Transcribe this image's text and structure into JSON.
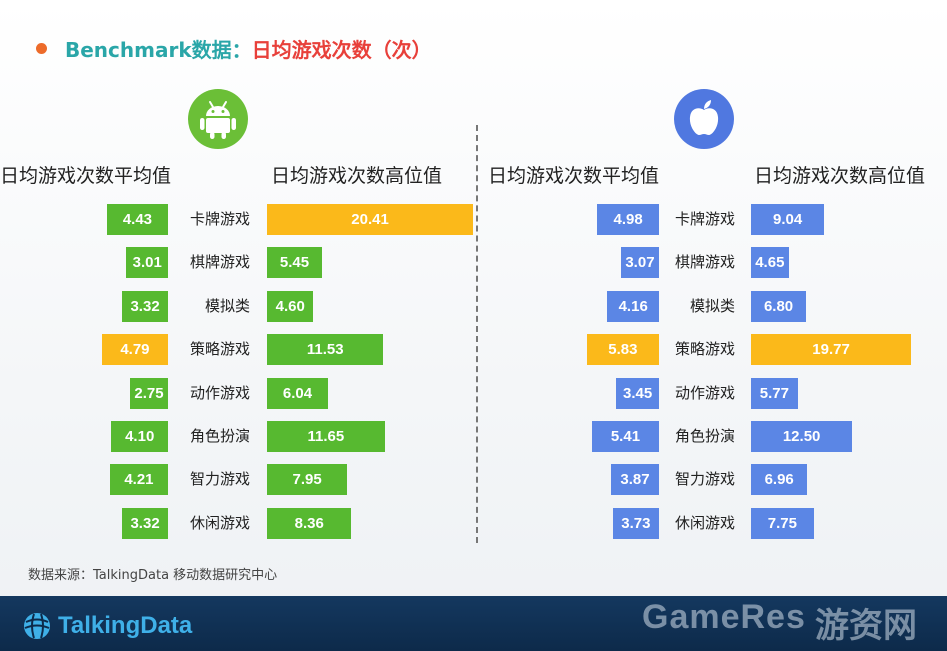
{
  "header": {
    "title_part1": "Benchmark数据：",
    "title_part2": "日均游戏次数（次）"
  },
  "android_panel": {
    "logo_icon": "android-icon",
    "col_avg_label": "日均游戏次数平均值",
    "col_high_label": "日均游戏次数高位值"
  },
  "ios_panel": {
    "logo_icon": "apple-icon",
    "col_avg_label": "日均游戏次数平均值",
    "col_high_label": "日均游戏次数高位值"
  },
  "chart_data": [
    {
      "type": "bar",
      "platform": "android",
      "categories": [
        "卡牌游戏",
        "棋牌游戏",
        "模拟类",
        "策略游戏",
        "动作游戏",
        "角色扮演",
        "智力游戏",
        "休闲游戏"
      ],
      "series": [
        {
          "name": "日均游戏次数平均值",
          "values": [
            4.43,
            3.01,
            3.32,
            4.79,
            2.75,
            4.1,
            4.21,
            3.32
          ]
        },
        {
          "name": "日均游戏次数高位值",
          "values": [
            20.41,
            5.45,
            4.6,
            11.53,
            6.04,
            11.65,
            7.95,
            8.36
          ]
        }
      ],
      "highlight": {
        "series0_index": 3,
        "series1_index": 0
      },
      "colors": {
        "base": "#57b930",
        "highlight": "#fbb91a"
      }
    },
    {
      "type": "bar",
      "platform": "ios",
      "categories": [
        "卡牌游戏",
        "棋牌游戏",
        "模拟类",
        "策略游戏",
        "动作游戏",
        "角色扮演",
        "智力游戏",
        "休闲游戏"
      ],
      "series": [
        {
          "name": "日均游戏次数平均值",
          "values": [
            4.98,
            3.07,
            4.16,
            5.83,
            3.45,
            5.41,
            3.87,
            3.73
          ]
        },
        {
          "name": "日均游戏次数高位值",
          "values": [
            9.04,
            4.65,
            6.8,
            19.77,
            5.77,
            12.5,
            6.96,
            7.75
          ]
        }
      ],
      "highlight": {
        "series0_index": 3,
        "series1_index": 3
      },
      "colors": {
        "base": "#5b86e5",
        "highlight": "#fbb91a"
      }
    }
  ],
  "source": "数据来源：TalkingData 移动数据研究中心",
  "footer": {
    "brand": "TalkingData",
    "watermark": "GameRes",
    "watermark_cn": "游资网"
  },
  "colors": {
    "title_teal": "#2aa6a8",
    "title_red": "#e8403a",
    "bullet_orange": "#ed6b2a",
    "footer_navy": "#14385f"
  }
}
